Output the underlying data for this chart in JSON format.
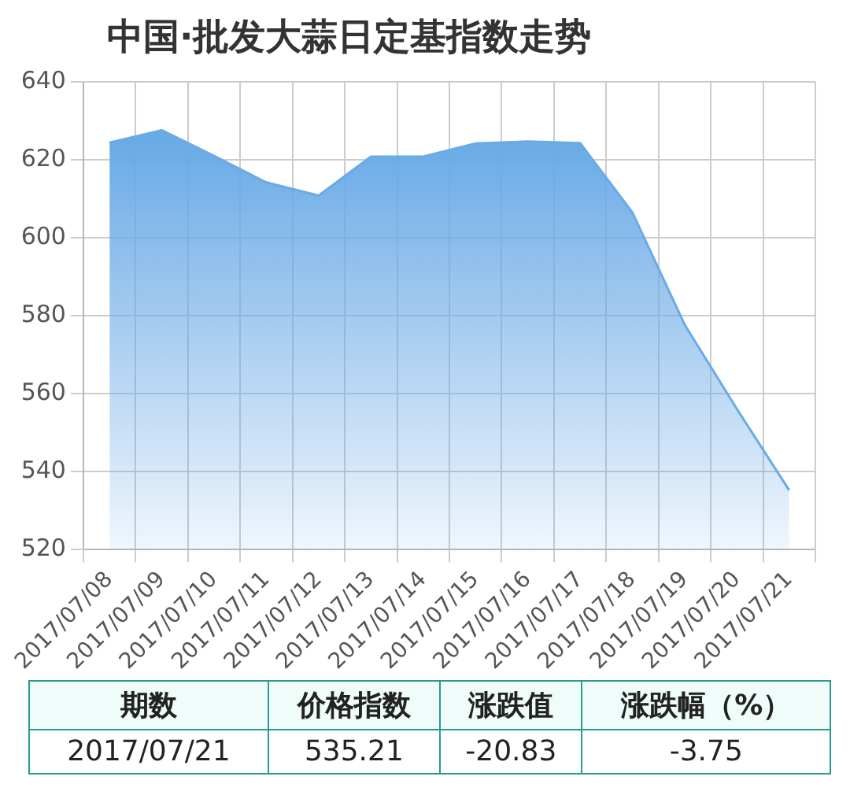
{
  "chart_data": {
    "type": "area",
    "title": "中国·批发大蒜日定基指数走势",
    "categories": [
      "2017/07/08",
      "2017/07/09",
      "2017/07/10",
      "2017/07/11",
      "2017/07/12",
      "2017/07/13",
      "2017/07/14",
      "2017/07/15",
      "2017/07/16",
      "2017/07/17",
      "2017/07/18",
      "2017/07/19",
      "2017/07/20",
      "2017/07/21"
    ],
    "series": [
      {
        "color": "#6aaae6",
        "values": [
          624.4,
          627.6,
          621,
          614.2,
          610.8,
          620.8,
          620.8,
          624.2,
          624.7,
          624.3,
          606.5,
          577.7,
          556.04,
          535.21
        ]
      }
    ],
    "ylim": [
      520,
      640
    ],
    "yticks": [
      520,
      540,
      560,
      580,
      600,
      620,
      640
    ],
    "grid": true,
    "legend": false,
    "marker": "none",
    "annotations": [
      "期数",
      "价格指数",
      "涨跌值",
      "涨跌幅（%）",
      "2017/07/21",
      "535.21",
      "-20.83",
      "-3.75"
    ]
  }
}
